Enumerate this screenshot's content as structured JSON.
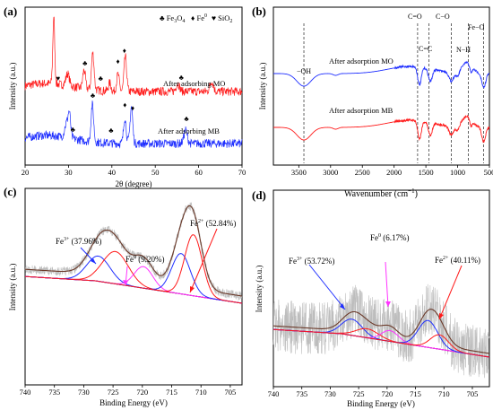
{
  "chart_data": [
    {
      "panel": "(a)",
      "type": "line",
      "xlabel": "2θ (degree)",
      "ylabel": "Intensity (a.u.)",
      "xlim": [
        20,
        70
      ],
      "xticks": [
        20,
        30,
        40,
        50,
        60,
        70
      ],
      "legend": [
        {
          "symbol": "♣",
          "label": "Fe3O4"
        },
        {
          "symbol": "♦",
          "label": "Fe0"
        },
        {
          "symbol": "♥",
          "label": "SiO2"
        }
      ],
      "series": [
        {
          "name": "After adsorbing MO",
          "color": "#ff1a1a",
          "baseline": 102,
          "peaks": [
            [
              26.6,
              1.0,
              0.22
            ],
            [
              29.8,
              0.18,
              0.4
            ],
            [
              33.6,
              0.28,
              0.3
            ],
            [
              35.6,
              0.55,
              0.3
            ],
            [
              39.5,
              0.12,
              0.3
            ],
            [
              41.4,
              0.25,
              0.3
            ],
            [
              43.1,
              0.52,
              0.3
            ],
            [
              55.2,
              0.12,
              0.4
            ],
            [
              63.0,
              0.15,
              0.4
            ]
          ],
          "markers": [
            {
              "x": 27.6,
              "symbol": "♥"
            },
            {
              "x": 33.8,
              "symbol": "♣"
            },
            {
              "x": 37.4,
              "symbol": "♣"
            },
            {
              "x": 41.4,
              "symbol": "♦"
            },
            {
              "x": 42.9,
              "symbol": "♦"
            },
            {
              "x": 56.0,
              "symbol": "♣"
            }
          ]
        },
        {
          "name": "After adsorbing MB",
          "color": "#1f2fff",
          "baseline": 160,
          "peaks": [
            [
              29.5,
              0.2,
              0.4
            ],
            [
              30.2,
              0.35,
              0.3
            ],
            [
              35.5,
              0.55,
              0.3
            ],
            [
              43.0,
              0.38,
              0.3
            ],
            [
              44.5,
              0.55,
              0.3
            ],
            [
              57.0,
              0.2,
              0.4
            ]
          ],
          "markers": [
            {
              "x": 31.0,
              "symbol": "♣"
            },
            {
              "x": 35.6,
              "symbol": "♣"
            },
            {
              "x": 39.8,
              "symbol": "♣"
            },
            {
              "x": 43.0,
              "symbol": "♦"
            },
            {
              "x": 44.8,
              "symbol": "♦"
            },
            {
              "x": 57.2,
              "symbol": "♣"
            }
          ]
        }
      ]
    },
    {
      "panel": "(b)",
      "type": "line",
      "xlabel": "Wavenumber (cm-1)",
      "ylabel": "Intensity (a.u.)",
      "xlim": [
        3900,
        500
      ],
      "xticks": [
        3500,
        3000,
        2500,
        2000,
        1500,
        1000,
        500
      ],
      "annotations": [
        {
          "x": 3420,
          "label": "−OH"
        },
        {
          "x": 1630,
          "label": "C=O"
        },
        {
          "x": 1450,
          "label": "C=C"
        },
        {
          "x": 1100,
          "label": "C−O"
        },
        {
          "x": 830,
          "label": "N−H"
        },
        {
          "x": 590,
          "label": "Fe−O"
        }
      ],
      "series": [
        {
          "name": "After adsorption MO",
          "color": "#1f2fff"
        },
        {
          "name": "After adsorption MB",
          "color": "#ff1a1a"
        }
      ]
    },
    {
      "panel": "(c)",
      "type": "line",
      "xlabel": "Binding Energy (eV)",
      "ylabel": "Intensity (a.u.)",
      "xlim": [
        740,
        703
      ],
      "xticks": [
        740,
        735,
        730,
        725,
        720,
        715,
        710,
        705
      ],
      "annotations": [
        {
          "label": "Fe3+ (37.96%)",
          "x": 727.5
        },
        {
          "label": "Fe0 (9.20%)",
          "x": 719.8
        },
        {
          "label": "Fe2+ (52.84%)",
          "x": 711.5
        }
      ]
    },
    {
      "panel": "(d)",
      "type": "line",
      "xlabel": "Binding Energy (eV)",
      "ylabel": "Intensity (a.u.)",
      "xlim": [
        740,
        702
      ],
      "xticks": [
        740,
        735,
        730,
        725,
        720,
        715,
        710,
        705
      ],
      "annotations": [
        {
          "label": "Fe3+ (53.72%)",
          "x": 726
        },
        {
          "label": "Fe0 (6.17%)",
          "x": 719.5
        },
        {
          "label": "Fe2+ (40.11%)",
          "x": 710.5
        }
      ]
    }
  ],
  "labels": {
    "a_panel": "(a)",
    "b_panel": "(b)",
    "c_panel": "(c)",
    "d_panel": "(d)",
    "a_legend_fe3o4": "♣ Fe",
    "a_legend_fe3o4_sub": "3",
    "a_legend_fe3o4_o": "O",
    "a_legend_fe3o4_sub2": "4",
    "a_legend_fe0": "♦ Fe",
    "a_legend_fe0_sup": "0",
    "a_legend_sio2": "♥ SiO",
    "a_legend_sio2_sub": "2",
    "a_series_mo": "After adsorbing MO",
    "a_series_mb": "After adsorbing MB",
    "a_xlabel": "2θ (degree)",
    "a_ylabel": "Intensity (a.u.)",
    "b_series_mo": "After adsorption MO",
    "b_series_mb": "After adsorption MB",
    "b_xlabel_main": "Wavenumber (cm",
    "b_xlabel_sup": "−1",
    "b_xlabel_end": ")",
    "b_ylabel": "Intensity (a.u.)",
    "b_oh": "−OH",
    "b_co_double": "C=O",
    "b_cc_double": "C=C",
    "b_co_single": "C−O",
    "b_nh": "N",
    "b_nh_h": "−H",
    "b_feo": "Fe−O",
    "c_xlabel": "Binding Energy (eV)",
    "c_ylabel": "Intensity (a.u.)",
    "c_fe3": "Fe",
    "c_fe3_sup": "3+",
    "c_fe3_val": " (37.96%)",
    "c_fe0": "Fe",
    "c_fe0_sup": "0",
    "c_fe0_val": " (9.20%)",
    "c_fe2": "Fe",
    "c_fe2_sup": "2+",
    "c_fe2_val": " (52.84%)",
    "d_xlabel": "Binding Energy (eV)",
    "d_ylabel": "Intensity (a.u.)",
    "d_fe3": "Fe",
    "d_fe3_sup": "3+",
    "d_fe3_val": " (53.72%)",
    "d_fe0": "Fe",
    "d_fe0_sup": "0",
    "d_fe0_val": " (6.17%)",
    "d_fe2": "Fe",
    "d_fe2_sup": "2+",
    "d_fe2_val": " (40.11%)"
  },
  "ticks": {
    "a": [
      "20",
      "30",
      "40",
      "50",
      "60",
      "70"
    ],
    "b": [
      "3500",
      "3000",
      "2500",
      "2000",
      "1500",
      "1000",
      "500"
    ],
    "c": [
      "740",
      "735",
      "730",
      "725",
      "720",
      "715",
      "710",
      "705"
    ],
    "d": [
      "740",
      "735",
      "730",
      "725",
      "720",
      "715",
      "710",
      "705"
    ]
  }
}
